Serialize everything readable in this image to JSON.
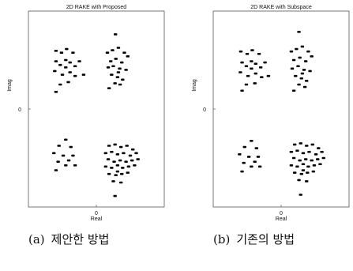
{
  "chart_data": [
    {
      "type": "scatter",
      "title": "2D RAKE with Proposed",
      "xlabel": "Real",
      "ylabel": "Imag",
      "x_ticks": [
        "0"
      ],
      "y_ticks": [
        "0"
      ],
      "xlim": [
        -1.6,
        1.6
      ],
      "ylim": [
        -1.6,
        1.6
      ],
      "grid": false,
      "points": [
        {
          "x": -0.95,
          "y": 0.95
        },
        {
          "x": -0.82,
          "y": 0.92
        },
        {
          "x": -0.7,
          "y": 0.98
        },
        {
          "x": -0.55,
          "y": 0.92
        },
        {
          "x": -0.95,
          "y": 0.78
        },
        {
          "x": -0.85,
          "y": 0.72
        },
        {
          "x": -0.72,
          "y": 0.8
        },
        {
          "x": -0.62,
          "y": 0.76
        },
        {
          "x": -0.5,
          "y": 0.7
        },
        {
          "x": -0.4,
          "y": 0.78
        },
        {
          "x": -0.98,
          "y": 0.62
        },
        {
          "x": -0.8,
          "y": 0.56
        },
        {
          "x": -0.62,
          "y": 0.6
        },
        {
          "x": -0.5,
          "y": 0.54
        },
        {
          "x": -0.3,
          "y": 0.56
        },
        {
          "x": -0.85,
          "y": 0.4
        },
        {
          "x": -0.66,
          "y": 0.44
        },
        {
          "x": -0.95,
          "y": 0.28
        },
        {
          "x": -0.72,
          "y": 0.68
        },
        {
          "x": 0.45,
          "y": 1.22
        },
        {
          "x": 0.26,
          "y": 0.92
        },
        {
          "x": 0.38,
          "y": 0.96
        },
        {
          "x": 0.52,
          "y": 1.0
        },
        {
          "x": 0.66,
          "y": 0.92
        },
        {
          "x": 0.74,
          "y": 0.86
        },
        {
          "x": 0.34,
          "y": 0.78
        },
        {
          "x": 0.46,
          "y": 0.82
        },
        {
          "x": 0.6,
          "y": 0.76
        },
        {
          "x": 0.28,
          "y": 0.68
        },
        {
          "x": 0.4,
          "y": 0.7
        },
        {
          "x": 0.55,
          "y": 0.66
        },
        {
          "x": 0.7,
          "y": 0.64
        },
        {
          "x": 0.36,
          "y": 0.56
        },
        {
          "x": 0.5,
          "y": 0.52
        },
        {
          "x": 0.62,
          "y": 0.48
        },
        {
          "x": 0.44,
          "y": 0.42
        },
        {
          "x": 0.56,
          "y": 0.4
        },
        {
          "x": 0.3,
          "y": 0.34
        },
        {
          "x": 0.52,
          "y": 0.6
        },
        {
          "x": -0.72,
          "y": -0.5
        },
        {
          "x": -0.88,
          "y": -0.6
        },
        {
          "x": -0.6,
          "y": -0.62
        },
        {
          "x": -1.0,
          "y": -0.72
        },
        {
          "x": -0.78,
          "y": -0.76
        },
        {
          "x": -0.55,
          "y": -0.76
        },
        {
          "x": -0.9,
          "y": -0.86
        },
        {
          "x": -0.72,
          "y": -0.92
        },
        {
          "x": -0.5,
          "y": -0.92
        },
        {
          "x": -0.95,
          "y": -1.0
        },
        {
          "x": -0.65,
          "y": -0.84
        },
        {
          "x": 0.3,
          "y": -0.6
        },
        {
          "x": 0.44,
          "y": -0.58
        },
        {
          "x": 0.58,
          "y": -0.62
        },
        {
          "x": 0.72,
          "y": -0.6
        },
        {
          "x": 0.86,
          "y": -0.66
        },
        {
          "x": 0.22,
          "y": -0.72
        },
        {
          "x": 0.36,
          "y": -0.7
        },
        {
          "x": 0.5,
          "y": -0.74
        },
        {
          "x": 0.64,
          "y": -0.72
        },
        {
          "x": 0.8,
          "y": -0.76
        },
        {
          "x": 0.94,
          "y": -0.72
        },
        {
          "x": 0.28,
          "y": -0.82
        },
        {
          "x": 0.42,
          "y": -0.86
        },
        {
          "x": 0.56,
          "y": -0.84
        },
        {
          "x": 0.7,
          "y": -0.86
        },
        {
          "x": 0.84,
          "y": -0.84
        },
        {
          "x": 0.98,
          "y": -0.82
        },
        {
          "x": 0.22,
          "y": -0.94
        },
        {
          "x": 0.36,
          "y": -0.96
        },
        {
          "x": 0.5,
          "y": -0.92
        },
        {
          "x": 0.62,
          "y": -0.96
        },
        {
          "x": 0.76,
          "y": -0.94
        },
        {
          "x": 0.9,
          "y": -0.92
        },
        {
          "x": 0.3,
          "y": -1.06
        },
        {
          "x": 0.46,
          "y": -1.08
        },
        {
          "x": 0.6,
          "y": -1.06
        },
        {
          "x": 0.74,
          "y": -1.04
        },
        {
          "x": 0.4,
          "y": -1.18
        },
        {
          "x": 0.58,
          "y": -1.2
        },
        {
          "x": 0.5,
          "y": -1.02
        },
        {
          "x": 0.44,
          "y": -1.42
        }
      ]
    },
    {
      "type": "scatter",
      "title": "2D RAKE with Subspace",
      "xlabel": "Real",
      "ylabel": "Imag",
      "x_ticks": [
        "0"
      ],
      "y_ticks": [
        "0"
      ],
      "xlim": [
        -1.6,
        1.6
      ],
      "ylim": [
        -1.6,
        1.6
      ],
      "grid": false,
      "points": [
        {
          "x": -0.95,
          "y": 0.94
        },
        {
          "x": -0.8,
          "y": 0.9
        },
        {
          "x": -0.68,
          "y": 0.96
        },
        {
          "x": -0.52,
          "y": 0.9
        },
        {
          "x": -0.92,
          "y": 0.76
        },
        {
          "x": -0.82,
          "y": 0.7
        },
        {
          "x": -0.7,
          "y": 0.78
        },
        {
          "x": -0.6,
          "y": 0.74
        },
        {
          "x": -0.48,
          "y": 0.68
        },
        {
          "x": -0.38,
          "y": 0.76
        },
        {
          "x": -0.96,
          "y": 0.6
        },
        {
          "x": -0.78,
          "y": 0.54
        },
        {
          "x": -0.6,
          "y": 0.58
        },
        {
          "x": -0.46,
          "y": 0.52
        },
        {
          "x": -0.3,
          "y": 0.54
        },
        {
          "x": -0.82,
          "y": 0.4
        },
        {
          "x": -0.62,
          "y": 0.42
        },
        {
          "x": -0.92,
          "y": 0.3
        },
        {
          "x": -0.7,
          "y": 0.66
        },
        {
          "x": 0.42,
          "y": 1.26
        },
        {
          "x": 0.24,
          "y": 0.94
        },
        {
          "x": 0.36,
          "y": 0.98
        },
        {
          "x": 0.5,
          "y": 1.02
        },
        {
          "x": 0.64,
          "y": 0.94
        },
        {
          "x": 0.72,
          "y": 0.86
        },
        {
          "x": 0.3,
          "y": 0.8
        },
        {
          "x": 0.44,
          "y": 0.84
        },
        {
          "x": 0.58,
          "y": 0.78
        },
        {
          "x": 0.26,
          "y": 0.66
        },
        {
          "x": 0.4,
          "y": 0.7
        },
        {
          "x": 0.54,
          "y": 0.64
        },
        {
          "x": 0.68,
          "y": 0.62
        },
        {
          "x": 0.34,
          "y": 0.54
        },
        {
          "x": 0.48,
          "y": 0.5
        },
        {
          "x": 0.6,
          "y": 0.46
        },
        {
          "x": 0.42,
          "y": 0.4
        },
        {
          "x": 0.56,
          "y": 0.36
        },
        {
          "x": 0.3,
          "y": 0.3
        },
        {
          "x": 0.5,
          "y": 0.58
        },
        {
          "x": -0.7,
          "y": -0.52
        },
        {
          "x": -0.86,
          "y": -0.62
        },
        {
          "x": -0.58,
          "y": -0.64
        },
        {
          "x": -0.98,
          "y": -0.74
        },
        {
          "x": -0.76,
          "y": -0.78
        },
        {
          "x": -0.54,
          "y": -0.78
        },
        {
          "x": -0.88,
          "y": -0.88
        },
        {
          "x": -0.7,
          "y": -0.94
        },
        {
          "x": -0.5,
          "y": -0.94
        },
        {
          "x": -0.92,
          "y": -1.02
        },
        {
          "x": -0.62,
          "y": -0.86
        },
        {
          "x": 0.32,
          "y": -0.58
        },
        {
          "x": 0.46,
          "y": -0.56
        },
        {
          "x": 0.6,
          "y": -0.6
        },
        {
          "x": 0.74,
          "y": -0.58
        },
        {
          "x": 0.88,
          "y": -0.64
        },
        {
          "x": 0.24,
          "y": -0.7
        },
        {
          "x": 0.38,
          "y": -0.68
        },
        {
          "x": 0.52,
          "y": -0.72
        },
        {
          "x": 0.66,
          "y": -0.7
        },
        {
          "x": 0.82,
          "y": -0.74
        },
        {
          "x": 0.96,
          "y": -0.7
        },
        {
          "x": 0.3,
          "y": -0.8
        },
        {
          "x": 0.44,
          "y": -0.84
        },
        {
          "x": 0.58,
          "y": -0.82
        },
        {
          "x": 0.72,
          "y": -0.84
        },
        {
          "x": 0.86,
          "y": -0.82
        },
        {
          "x": 1.0,
          "y": -0.8
        },
        {
          "x": 0.24,
          "y": -0.92
        },
        {
          "x": 0.38,
          "y": -0.94
        },
        {
          "x": 0.52,
          "y": -0.9
        },
        {
          "x": 0.64,
          "y": -0.94
        },
        {
          "x": 0.78,
          "y": -0.92
        },
        {
          "x": 0.92,
          "y": -0.9
        },
        {
          "x": 0.32,
          "y": -1.04
        },
        {
          "x": 0.48,
          "y": -1.06
        },
        {
          "x": 0.62,
          "y": -1.04
        },
        {
          "x": 0.76,
          "y": -1.02
        },
        {
          "x": 0.42,
          "y": -1.16
        },
        {
          "x": 0.6,
          "y": -1.18
        },
        {
          "x": 0.52,
          "y": -1.0
        },
        {
          "x": 0.46,
          "y": -1.4
        }
      ]
    }
  ],
  "captions": [
    {
      "tag": "(a)",
      "text": "제안한 방법"
    },
    {
      "tag": "(b)",
      "text": "기존의 방법"
    }
  ]
}
